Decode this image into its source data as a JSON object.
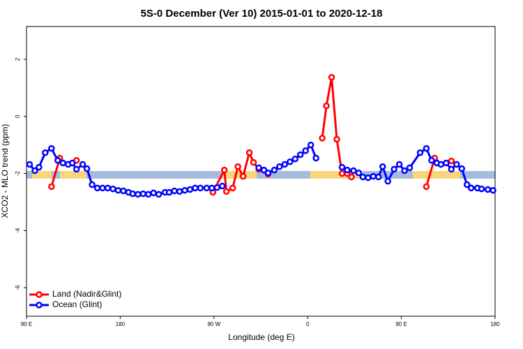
{
  "chart_data": {
    "type": "line",
    "title": "5S-0 December (Ver 10)   2015-01-01 to 2020-12-18",
    "x_label": "Longitude (deg E)",
    "y_label": "XCO2 - MLO trend (ppm)",
    "xlim": [
      90,
      540
    ],
    "ylim": [
      -7,
      3.15
    ],
    "xticks": [
      {
        "value": 90,
        "label": "90 E"
      },
      180,
      {
        "value": 270,
        "label": "90 W"
      },
      {
        "value": 360,
        "label": "0"
      },
      {
        "value": 450,
        "label": "90 E"
      },
      {
        "value": 540,
        "label": "180"
      }
    ],
    "yticks": [
      -6,
      -4,
      -2,
      0,
      2
    ],
    "legend": "bottom-left",
    "series": [
      {
        "name": "Land (Nadir&Glint)",
        "color": "#ff0000",
        "x": [
          114,
          122,
          130,
          138,
          200,
          269,
          280,
          282,
          288,
          293,
          298,
          304,
          308,
          313,
          322,
          350,
          374,
          378,
          383,
          388,
          393,
          398,
          402,
          450,
          474,
          482,
          490,
          498
        ],
        "values": [
          -2.46,
          -1.46,
          null,
          -1.54,
          null,
          -2.66,
          -1.88,
          -2.63,
          -2.51,
          -1.76,
          -2.1,
          -1.27,
          -1.61,
          -1.85,
          -2.02,
          null,
          -0.76,
          0.37,
          1.37,
          -0.8,
          -2.0,
          -2.0,
          -2.12,
          null,
          -2.46,
          -1.46,
          null,
          -1.56
        ]
      },
      {
        "name": "Ocean (Glint)",
        "color": "#0000ff",
        "x": [
          93,
          98,
          102,
          108,
          114,
          120,
          125,
          130,
          134,
          138,
          144,
          148,
          153,
          158,
          163,
          168,
          173,
          178,
          183,
          188,
          192,
          197,
          202,
          207,
          212,
          217,
          223,
          227,
          232,
          237,
          242,
          247,
          252,
          257,
          263,
          268,
          273,
          278,
          295,
          313,
          318,
          322,
          328,
          333,
          338,
          343,
          348,
          353,
          358,
          363,
          368,
          380,
          393,
          398,
          404,
          409,
          413,
          418,
          423,
          428,
          432,
          437,
          443,
          448,
          453,
          458,
          468,
          474,
          479,
          484,
          488,
          493,
          498,
          503,
          508,
          513,
          517,
          523,
          527,
          533,
          538
        ],
        "values": [
          -1.68,
          -1.9,
          -1.78,
          -1.27,
          -1.12,
          -1.54,
          -1.63,
          -1.68,
          -1.63,
          -1.85,
          -1.68,
          -1.83,
          -2.39,
          -2.51,
          -2.51,
          -2.51,
          -2.54,
          -2.59,
          -2.61,
          -2.66,
          -2.71,
          -2.73,
          -2.71,
          -2.73,
          -2.68,
          -2.73,
          -2.66,
          -2.66,
          -2.61,
          -2.63,
          -2.59,
          -2.56,
          -2.51,
          -2.51,
          -2.51,
          -2.51,
          -2.49,
          -2.44,
          null,
          -1.8,
          -1.88,
          -1.98,
          -1.88,
          -1.76,
          -1.68,
          -1.59,
          -1.49,
          -1.34,
          -1.2,
          -1.0,
          -1.46,
          null,
          -1.78,
          -1.88,
          -1.9,
          -1.98,
          -2.12,
          -2.15,
          -2.1,
          -2.12,
          -1.76,
          -2.27,
          -1.85,
          -1.68,
          -1.9,
          -1.8,
          -1.27,
          -1.12,
          -1.54,
          -1.63,
          -1.68,
          -1.63,
          -1.85,
          -1.68,
          -1.83,
          -2.39,
          -2.51,
          -2.51,
          -2.54,
          -2.56,
          -2.59
        ]
      }
    ]
  }
}
